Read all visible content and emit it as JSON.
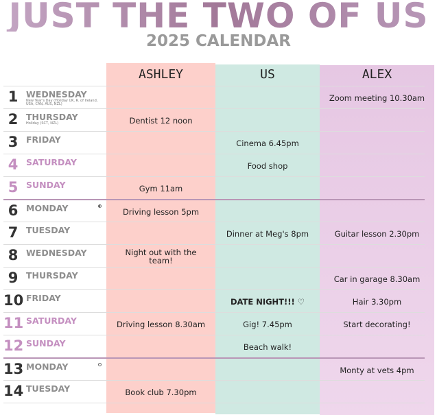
{
  "header": {
    "title": "JUST THE TWO OF US",
    "subtitle": "2025 CALENDAR"
  },
  "columns": {
    "ashley": "ASHLEY",
    "us": "US",
    "alex": "ALEX"
  },
  "colors": {
    "ashley": "#fdd0cb",
    "us": "#cfe9e2",
    "alex": "#e9cbe6",
    "weekend": "#c48fc0",
    "week_divider": "#b996b6"
  },
  "rows": [
    {
      "num": "1",
      "day": "WEDNESDAY",
      "note": "New Year's Day (Holiday UK, R. of Ireland, USA, CAN, AUS, NZL)",
      "ashley": "",
      "us": "",
      "alex": "Zoom meeting 10.30am"
    },
    {
      "num": "2",
      "day": "THURSDAY",
      "note": "Holiday (SCT, NZL)",
      "ashley": "Dentist 12 noon",
      "us": "",
      "alex": ""
    },
    {
      "num": "3",
      "day": "FRIDAY",
      "ashley": "",
      "us": "Cinema 6.45pm",
      "alex": ""
    },
    {
      "num": "4",
      "day": "SATURDAY",
      "weekend": true,
      "ashley": "",
      "us": "Food shop",
      "alex": ""
    },
    {
      "num": "5",
      "day": "SUNDAY",
      "weekend": true,
      "ashley": "Gym 11am",
      "us": "",
      "alex": ""
    },
    {
      "num": "6",
      "day": "MONDAY",
      "moon": "half-moon",
      "ashley": "Driving lesson 5pm",
      "us": "",
      "alex": ""
    },
    {
      "num": "7",
      "day": "TUESDAY",
      "ashley": "",
      "us": "Dinner at Meg's 8pm",
      "alex": "Guitar lesson 2.30pm"
    },
    {
      "num": "8",
      "day": "WEDNESDAY",
      "ashley": "Night out with the team!",
      "us": "",
      "alex": ""
    },
    {
      "num": "9",
      "day": "THURSDAY",
      "ashley": "",
      "us": "",
      "alex": "Car in garage 8.30am"
    },
    {
      "num": "10",
      "day": "FRIDAY",
      "ashley": "",
      "us": "DATE NIGHT!!! ♡",
      "alex": "Hair 3.30pm"
    },
    {
      "num": "11",
      "day": "SATURDAY",
      "weekend": true,
      "ashley": "Driving lesson 8.30am",
      "us": "Gig! 7.45pm",
      "alex": "Start decorating!"
    },
    {
      "num": "12",
      "day": "SUNDAY",
      "weekend": true,
      "ashley": "",
      "us": "Beach walk!",
      "alex": ""
    },
    {
      "num": "13",
      "day": "MONDAY",
      "moon": "full-moon",
      "ashley": "",
      "us": "",
      "alex": "Monty at vets 4pm"
    },
    {
      "num": "14",
      "day": "TUESDAY",
      "ashley": "Book club 7.30pm",
      "us": "",
      "alex": ""
    }
  ]
}
